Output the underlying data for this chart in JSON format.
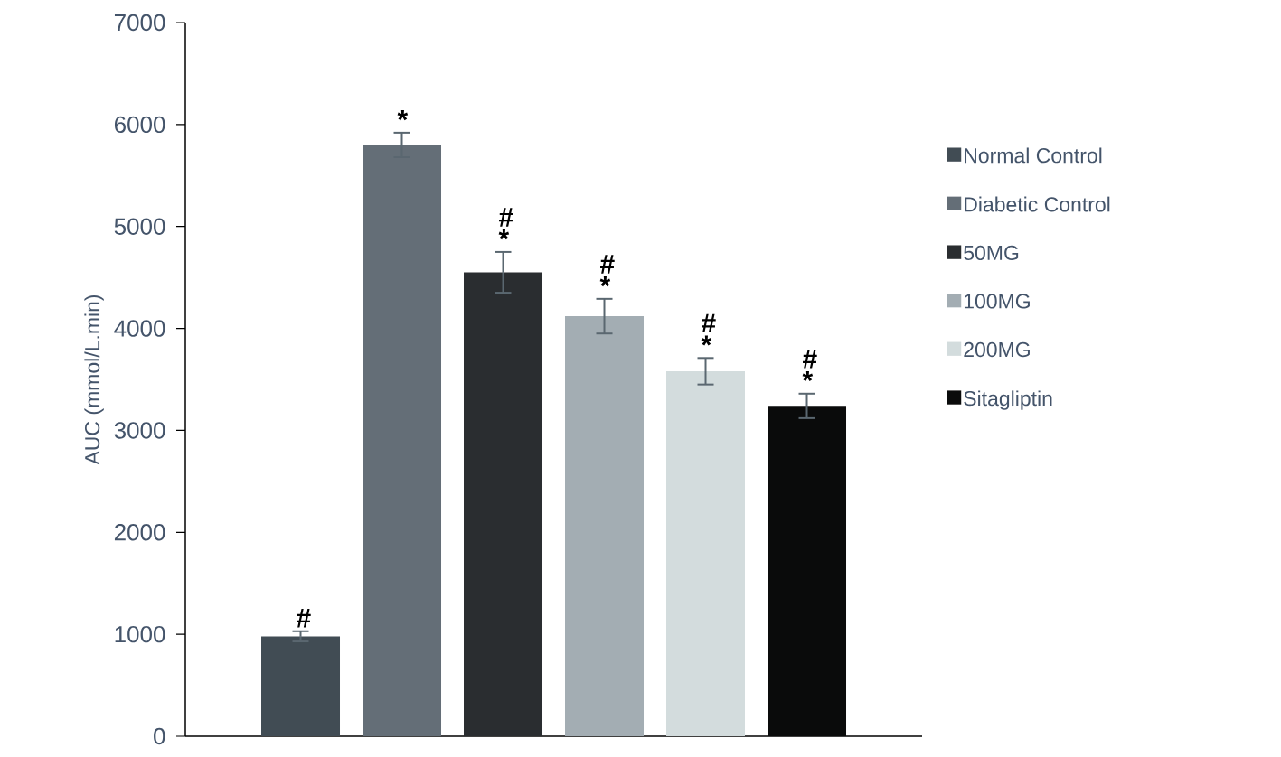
{
  "chart_data": {
    "type": "bar",
    "ylabel": "AUC (mmol/L.min)",
    "categories": [
      null
    ],
    "ylim": [
      0,
      7000
    ],
    "yticks": [
      0,
      1000,
      2000,
      3000,
      4000,
      5000,
      6000,
      7000
    ],
    "legend": "right",
    "series": [
      {
        "name": "Normal Control",
        "color": "#414c54",
        "values": [
          980
        ],
        "errors": [
          50
        ],
        "value_labels": [
          "#"
        ]
      },
      {
        "name": "Diabetic Control",
        "color": "#646e77",
        "values": [
          5800
        ],
        "errors": [
          120
        ],
        "value_labels": [
          "*"
        ]
      },
      {
        "name": "50MG",
        "color": "#2a2d30",
        "values": [
          4550
        ],
        "errors": [
          200
        ],
        "value_labels": [
          "# *"
        ]
      },
      {
        "name": "100MG",
        "color": "#a3adb3",
        "values": [
          4120
        ],
        "errors": [
          170
        ],
        "value_labels": [
          "# *"
        ]
      },
      {
        "name": "200MG",
        "color": "#d3dcdd",
        "values": [
          3580
        ],
        "errors": [
          130
        ],
        "value_labels": [
          "# *"
        ]
      },
      {
        "name": "Sitagliptin",
        "color": "#0a0b0b",
        "values": [
          3240
        ],
        "errors": [
          120
        ],
        "value_labels": [
          "# *"
        ]
      }
    ]
  }
}
